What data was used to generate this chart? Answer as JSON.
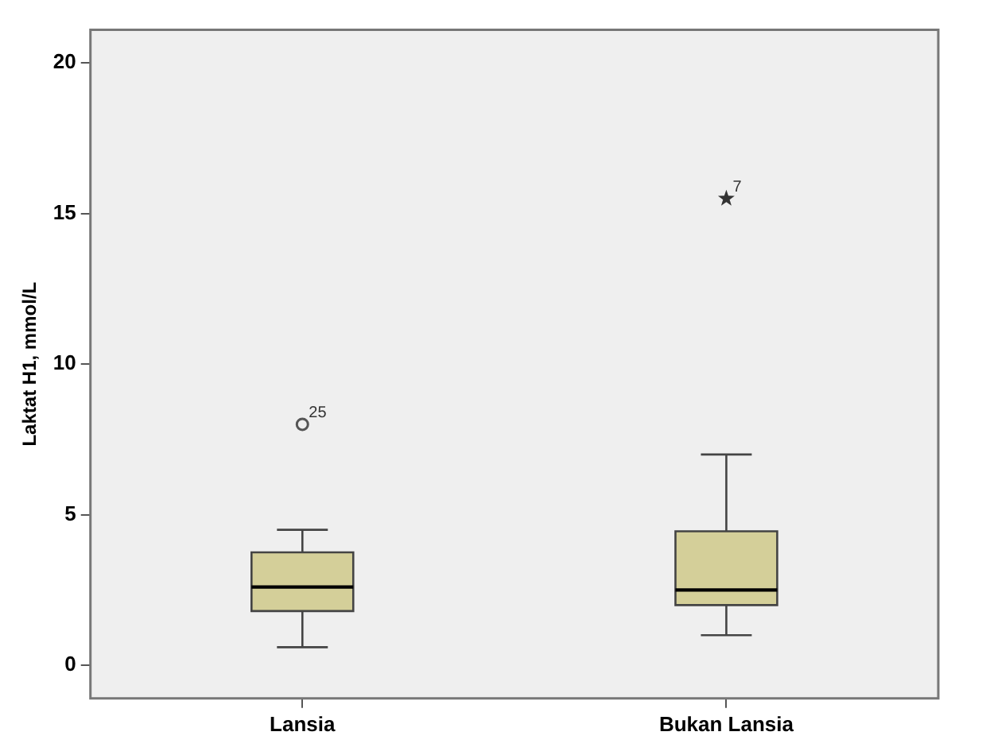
{
  "chart_data": {
    "type": "box",
    "ylabel": "Laktat H1, mmol/L",
    "categories": [
      "Lansia",
      "Bukan Lansia"
    ],
    "color": "#d4cf99",
    "boxes": [
      {
        "low": 0.6,
        "q1": 1.8,
        "median": 2.6,
        "q3": 3.75,
        "high": 4.5,
        "outliers": [
          8.0
        ]
      },
      {
        "low": 1.0,
        "q1": 2.0,
        "median": 2.5,
        "q3": 4.45,
        "high": 7.0
      }
    ],
    "series": [
      {
        "type": "scatter",
        "x": [
          "Bukan Lansia"
        ],
        "values": [
          15.5
        ],
        "marker": "star",
        "color": "#333333"
      }
    ],
    "marker": "circle",
    "ylim": [
      -1.1,
      21.1
    ],
    "yticks": [
      0,
      5,
      10,
      15,
      20
    ],
    "annotations": [
      "25",
      "7"
    ]
  }
}
